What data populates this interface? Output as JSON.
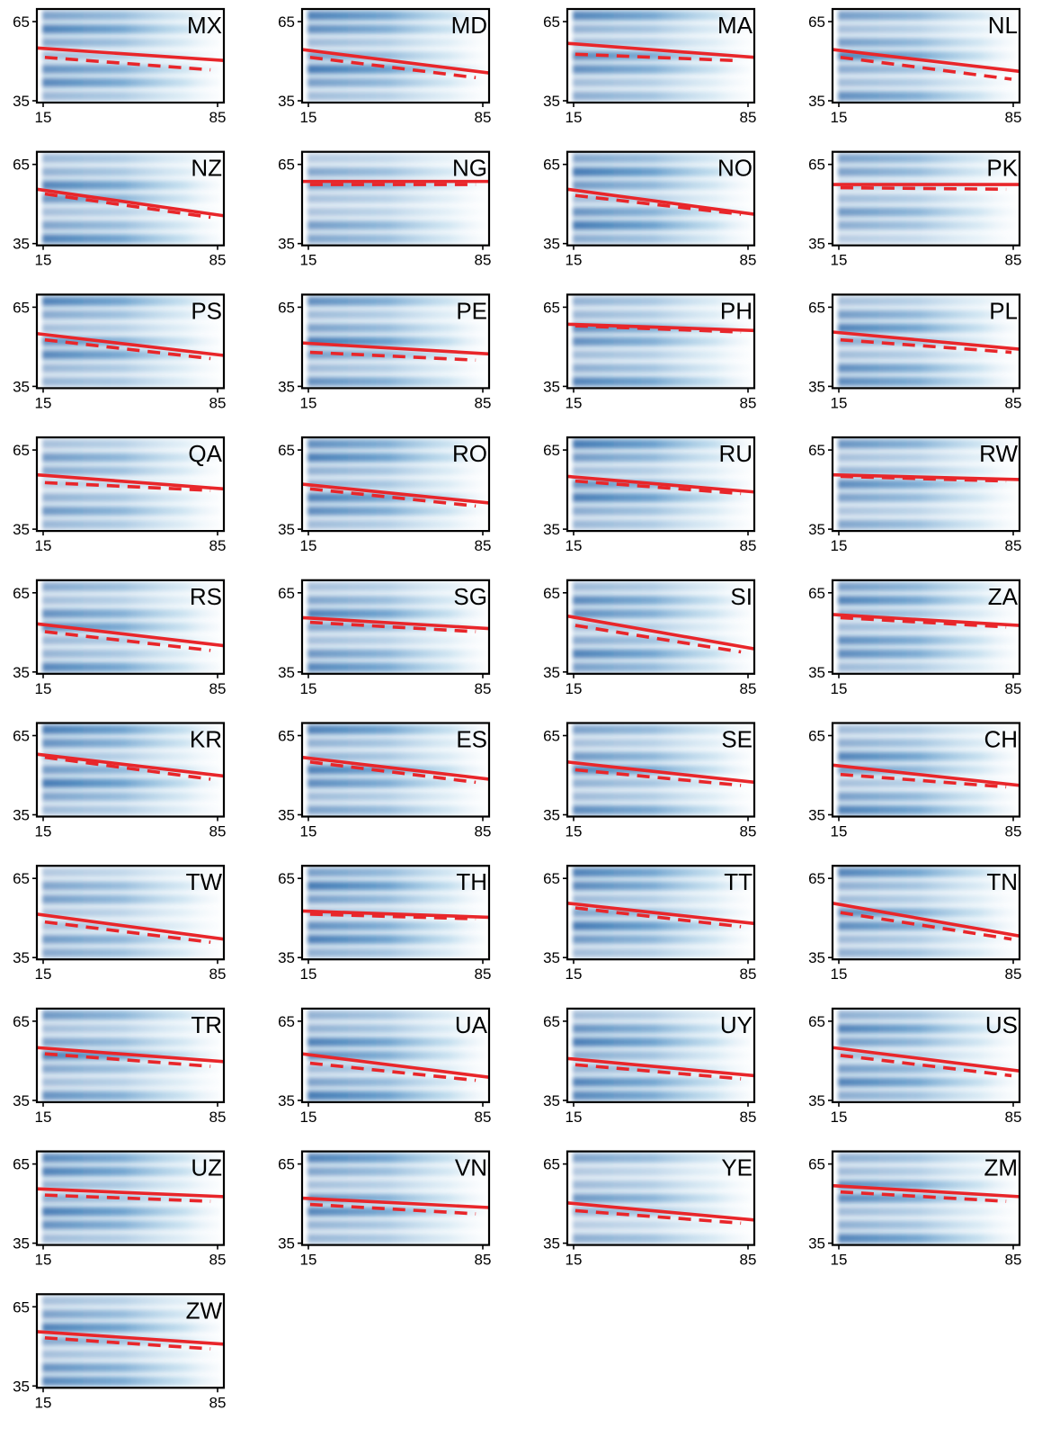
{
  "chart_data": {
    "type": "heatmap",
    "layout": "small-multiples",
    "x_ticks": [
      "15",
      "85"
    ],
    "y_ticks": [
      "65",
      "35"
    ],
    "xlim": [
      15,
      85
    ],
    "ylim": [
      35,
      65
    ],
    "colors": {
      "density": "#08519c",
      "solid_line": "#e8262a",
      "dashed_line": "#e8262a"
    },
    "panels": [
      {
        "label": "MX",
        "solid": [
          52.5,
          48.5
        ],
        "dashed": [
          49.5,
          45.5
        ],
        "dashed_x_end": 80,
        "density": 0.85
      },
      {
        "label": "MD",
        "solid": [
          52.0,
          44.5
        ],
        "dashed": [
          49.5,
          43.0
        ],
        "dashed_x_end": 80,
        "density": 0.9
      },
      {
        "label": "MA",
        "solid": [
          54.0,
          49.5
        ],
        "dashed": [
          50.5,
          48.5
        ],
        "dashed_x_end": 77,
        "density": 0.85
      },
      {
        "label": "NL",
        "solid": [
          52.0,
          45.0
        ],
        "dashed": [
          49.5,
          42.5
        ],
        "dashed_x_end": 82,
        "density": 0.85
      },
      {
        "label": "NZ",
        "solid": [
          53.0,
          44.5
        ],
        "dashed": [
          51.5,
          44.0
        ],
        "dashed_x_end": 80,
        "density": 0.85
      },
      {
        "label": "NG",
        "solid": [
          55.5,
          55.5
        ],
        "dashed": [
          54.5,
          54.5
        ],
        "dashed_x_end": 80,
        "density": 0.7
      },
      {
        "label": "NO",
        "solid": [
          53.0,
          45.0
        ],
        "dashed": [
          51.0,
          45.0
        ],
        "dashed_x_end": 80,
        "density": 0.9
      },
      {
        "label": "PK",
        "solid": [
          54.5,
          54.5
        ],
        "dashed": [
          53.5,
          53.0
        ],
        "dashed_x_end": 80,
        "density": 0.7
      },
      {
        "label": "PS",
        "solid": [
          52.5,
          45.5
        ],
        "dashed": [
          50.5,
          44.5
        ],
        "dashed_x_end": 80,
        "density": 0.85
      },
      {
        "label": "PE",
        "solid": [
          49.5,
          46.0
        ],
        "dashed": [
          46.5,
          44.0
        ],
        "dashed_x_end": 80,
        "density": 0.9
      },
      {
        "label": "PH",
        "solid": [
          55.5,
          53.5
        ],
        "dashed": [
          55.0,
          53.0
        ],
        "dashed_x_end": 80,
        "density": 0.85
      },
      {
        "label": "PL",
        "solid": [
          53.0,
          47.5
        ],
        "dashed": [
          50.5,
          46.5
        ],
        "dashed_x_end": 82,
        "density": 0.85
      },
      {
        "label": "QA",
        "solid": [
          53.0,
          48.5
        ],
        "dashed": [
          50.5,
          48.0
        ],
        "dashed_x_end": 80,
        "density": 0.7
      },
      {
        "label": "RO",
        "solid": [
          50.0,
          44.0
        ],
        "dashed": [
          48.5,
          43.0
        ],
        "dashed_x_end": 80,
        "density": 0.9
      },
      {
        "label": "RU",
        "solid": [
          52.5,
          47.5
        ],
        "dashed": [
          51.0,
          47.0
        ],
        "dashed_x_end": 80,
        "density": 0.9
      },
      {
        "label": "RW",
        "solid": [
          53.0,
          51.5
        ],
        "dashed": [
          52.5,
          51.0
        ],
        "dashed_x_end": 80,
        "density": 0.8
      },
      {
        "label": "RS",
        "solid": [
          51.0,
          44.0
        ],
        "dashed": [
          48.5,
          42.5
        ],
        "dashed_x_end": 80,
        "density": 0.85
      },
      {
        "label": "SG",
        "solid": [
          53.0,
          49.5
        ],
        "dashed": [
          51.5,
          48.5
        ],
        "dashed_x_end": 80,
        "density": 0.85
      },
      {
        "label": "SI",
        "solid": [
          53.5,
          43.0
        ],
        "dashed": [
          50.5,
          42.0
        ],
        "dashed_x_end": 80,
        "density": 0.85
      },
      {
        "label": "ZA",
        "solid": [
          54.0,
          50.5
        ],
        "dashed": [
          53.0,
          50.0
        ],
        "dashed_x_end": 80,
        "density": 0.85
      },
      {
        "label": "KR",
        "solid": [
          55.0,
          48.0
        ],
        "dashed": [
          54.0,
          47.0
        ],
        "dashed_x_end": 80,
        "density": 0.9
      },
      {
        "label": "ES",
        "solid": [
          54.0,
          47.0
        ],
        "dashed": [
          52.5,
          46.0
        ],
        "dashed_x_end": 80,
        "density": 0.9
      },
      {
        "label": "SE",
        "solid": [
          52.5,
          46.0
        ],
        "dashed": [
          50.0,
          45.0
        ],
        "dashed_x_end": 80,
        "density": 0.85
      },
      {
        "label": "CH",
        "solid": [
          51.5,
          45.0
        ],
        "dashed": [
          48.5,
          44.5
        ],
        "dashed_x_end": 80,
        "density": 0.85
      },
      {
        "label": "TW",
        "solid": [
          49.5,
          41.5
        ],
        "dashed": [
          47.0,
          40.5
        ],
        "dashed_x_end": 80,
        "density": 0.7
      },
      {
        "label": "TH",
        "solid": [
          50.5,
          48.5
        ],
        "dashed": [
          49.5,
          48.0
        ],
        "dashed_x_end": 80,
        "density": 0.9
      },
      {
        "label": "TT",
        "solid": [
          53.0,
          46.5
        ],
        "dashed": [
          51.5,
          45.5
        ],
        "dashed_x_end": 80,
        "density": 0.9
      },
      {
        "label": "TN",
        "solid": [
          53.0,
          42.5
        ],
        "dashed": [
          50.0,
          41.5
        ],
        "dashed_x_end": 82,
        "density": 0.85
      },
      {
        "label": "TR",
        "solid": [
          52.5,
          48.0
        ],
        "dashed": [
          50.5,
          46.5
        ],
        "dashed_x_end": 80,
        "density": 0.85
      },
      {
        "label": "UA",
        "solid": [
          50.5,
          43.0
        ],
        "dashed": [
          47.5,
          42.0
        ],
        "dashed_x_end": 80,
        "density": 0.9
      },
      {
        "label": "UY",
        "solid": [
          49.0,
          43.5
        ],
        "dashed": [
          47.0,
          42.5
        ],
        "dashed_x_end": 80,
        "density": 0.9
      },
      {
        "label": "US",
        "solid": [
          52.5,
          45.0
        ],
        "dashed": [
          50.0,
          43.5
        ],
        "dashed_x_end": 82,
        "density": 0.85
      },
      {
        "label": "UZ",
        "solid": [
          53.0,
          50.5
        ],
        "dashed": [
          51.0,
          49.0
        ],
        "dashed_x_end": 80,
        "density": 0.9
      },
      {
        "label": "VN",
        "solid": [
          50.0,
          47.0
        ],
        "dashed": [
          48.0,
          45.0
        ],
        "dashed_x_end": 80,
        "density": 0.85
      },
      {
        "label": "YE",
        "solid": [
          48.5,
          43.0
        ],
        "dashed": [
          46.0,
          42.0
        ],
        "dashed_x_end": 80,
        "density": 0.7
      },
      {
        "label": "ZM",
        "solid": [
          54.0,
          50.5
        ],
        "dashed": [
          52.0,
          49.0
        ],
        "dashed_x_end": 80,
        "density": 0.85
      },
      {
        "label": "ZW",
        "solid": [
          53.0,
          49.0
        ],
        "dashed": [
          51.0,
          47.5
        ],
        "dashed_x_end": 80,
        "density": 0.85
      }
    ]
  }
}
